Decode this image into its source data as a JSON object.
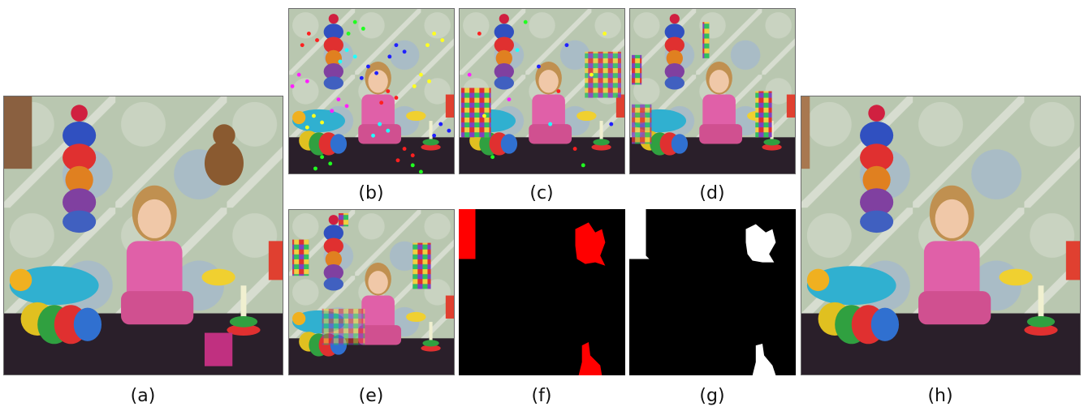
{
  "figure": {
    "captions": {
      "a": "(a)",
      "b": "(b)",
      "c": "(c)",
      "d": "(d)",
      "e": "(e)",
      "f": "(f)",
      "g": "(g)",
      "h": "(h)"
    },
    "panels": {
      "a": {
        "content": "original-scene"
      },
      "b": {
        "content": "scene-with-random-noise"
      },
      "c": {
        "content": "scene-with-block-noise"
      },
      "d": {
        "content": "scene-with-block-noise-2"
      },
      "e": {
        "content": "scene-with-block-noise-3"
      },
      "f": {
        "content": "red-mask"
      },
      "g": {
        "content": "binary-mask"
      },
      "h": {
        "content": "restored-scene"
      }
    },
    "colors": {
      "wallpaper": "#b9c7b0",
      "floor": "#2a1f2a",
      "mask_red": "#ff0000",
      "mask_white": "#ffffff",
      "mask_bg": "#000000",
      "frame": "#6b6b6b"
    }
  }
}
